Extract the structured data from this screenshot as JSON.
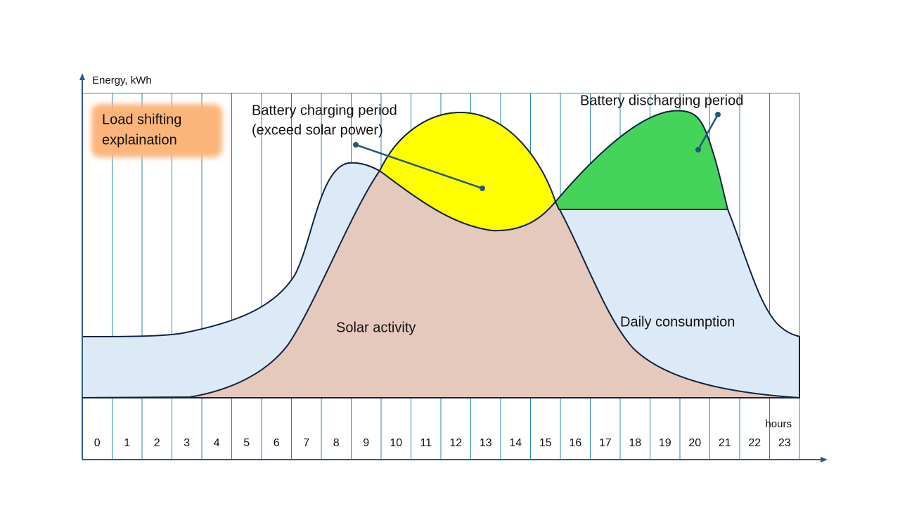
{
  "axis": {
    "y_label": "Energy, kWh",
    "x_label": "hours",
    "hours": [
      "0",
      "1",
      "2",
      "3",
      "4",
      "5",
      "6",
      "7",
      "8",
      "9",
      "10",
      "11",
      "12",
      "13",
      "14",
      "15",
      "16",
      "17",
      "18",
      "19",
      "20",
      "21",
      "22",
      "23"
    ]
  },
  "title_box": [
    "Load shifting",
    "explaination"
  ],
  "annotations": {
    "charging": [
      "Battery charging period",
      "(exceed solar power)"
    ],
    "discharging": "Battery discharging period",
    "solar": "Solar activity",
    "consumption": "Daily consumption"
  }
}
